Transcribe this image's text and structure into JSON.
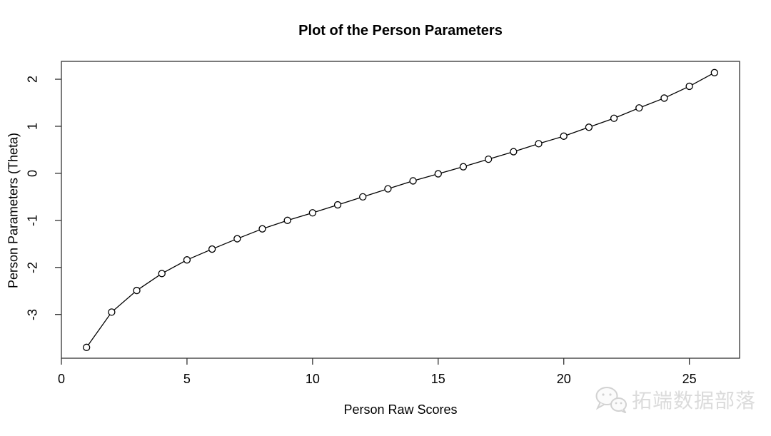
{
  "chart_data": {
    "type": "line",
    "title": "Plot of the Person Parameters",
    "xlabel": "Person Raw Scores",
    "ylabel": "Person Parameters (Theta)",
    "series": [
      {
        "name": "person-parameters-theta",
        "x": [
          1,
          2,
          3,
          4,
          5,
          6,
          7,
          8,
          9,
          10,
          11,
          12,
          13,
          14,
          15,
          16,
          17,
          18,
          19,
          20,
          21,
          22,
          23,
          24,
          25,
          26
        ],
        "y": [
          -3.7,
          -2.95,
          -2.49,
          -2.13,
          -1.84,
          -1.61,
          -1.39,
          -1.18,
          -1.0,
          -0.84,
          -0.67,
          -0.5,
          -0.33,
          -0.16,
          -0.01,
          0.14,
          0.3,
          0.46,
          0.63,
          0.79,
          0.98,
          1.17,
          1.39,
          1.6,
          1.85,
          2.14
        ]
      }
    ],
    "xlim": [
      0,
      27
    ],
    "ylim": [
      -3.93,
      2.38
    ],
    "x_ticks": [
      0,
      5,
      10,
      15,
      20,
      25
    ],
    "y_ticks": [
      2,
      1,
      0,
      -1,
      -2,
      -3
    ],
    "grid": false,
    "legend": "none",
    "marker": "open-circle",
    "line_color": "#000000",
    "frame_color": "#333333",
    "marker_fill": "#ffffff"
  },
  "watermark": {
    "icon": "wechat-icon",
    "text": "拓端数据部落",
    "color": "#dbdbdb"
  }
}
